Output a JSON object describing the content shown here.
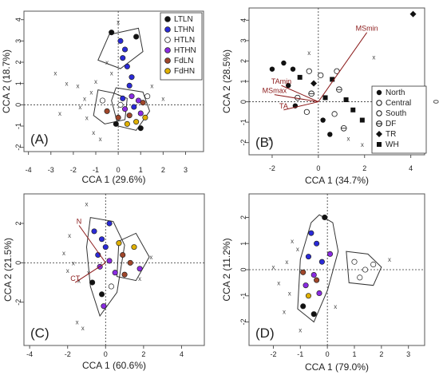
{
  "chart_data": [
    {
      "type": "scatter",
      "panel_label": "(A)",
      "xlabel": "CCA 1 (29.6%)",
      "ylabel": "CCA 2 (18.7%)",
      "xlim": [
        -4.2,
        3.8
      ],
      "ylim": [
        -2.2,
        4.4
      ],
      "xticks": [
        -4,
        -3,
        -2,
        -1,
        0,
        1,
        2,
        3
      ],
      "yticks": [
        -2,
        -1,
        0,
        1,
        2,
        3,
        4
      ],
      "legend": {
        "position": "top-right",
        "entries": [
          {
            "name": "LTLN",
            "color": "#111111"
          },
          {
            "name": "LTHN",
            "color": "#2a2ad8"
          },
          {
            "name": "HTLN",
            "color": "#ffffff"
          },
          {
            "name": "HTHN",
            "color": "#8a2be2"
          },
          {
            "name": "FdLN",
            "color": "#a0462a"
          },
          {
            "name": "FdHN",
            "color": "#e0b000"
          }
        ]
      },
      "hulls": [
        {
          "series": "LTHN",
          "points": [
            [
              -0.4,
              3.3
            ],
            [
              0.9,
              3.6
            ],
            [
              1.1,
              2.5
            ],
            [
              0.1,
              1.7
            ],
            [
              -0.9,
              2.1
            ]
          ]
        },
        {
          "series": "FdLN",
          "points": [
            [
              -0.9,
              0.7
            ],
            [
              -0.2,
              0.55
            ],
            [
              0.4,
              0.3
            ],
            [
              0.3,
              -0.7
            ],
            [
              -0.6,
              -0.9
            ],
            [
              -1.1,
              -0.5
            ]
          ]
        },
        {
          "series": "LTLN",
          "points": [
            [
              -0.1,
              0.8
            ],
            [
              1.1,
              0.6
            ],
            [
              1.4,
              -0.3
            ],
            [
              0.8,
              -1.2
            ],
            [
              0.0,
              -1.0
            ],
            [
              -0.3,
              0.2
            ]
          ]
        }
      ],
      "points": [
        {
          "series": "LTHN",
          "x": 0.1,
          "y": 3.0
        },
        {
          "series": "LTHN",
          "x": 0.3,
          "y": 2.6
        },
        {
          "series": "LTHN",
          "x": 0.2,
          "y": 2.2
        },
        {
          "series": "LTHN",
          "x": 0.4,
          "y": 1.8
        },
        {
          "series": "LTHN",
          "x": 0.6,
          "y": 1.3
        },
        {
          "series": "LTHN",
          "x": 0.5,
          "y": 0.9
        },
        {
          "series": "LTLN",
          "x": 0.8,
          "y": 3.2
        },
        {
          "series": "LTLN",
          "x": -0.3,
          "y": 3.4
        },
        {
          "series": "HTHN",
          "x": 0.6,
          "y": 0.4
        },
        {
          "series": "HTHN",
          "x": 0.9,
          "y": 0.2
        },
        {
          "series": "HTHN",
          "x": 0.3,
          "y": -0.2
        },
        {
          "series": "HTHN",
          "x": 1.0,
          "y": -0.4
        },
        {
          "series": "LTHN",
          "x": 0.2,
          "y": 0.3
        },
        {
          "series": "LTHN",
          "x": 0.7,
          "y": -0.1
        },
        {
          "series": "FdLN",
          "x": 0.5,
          "y": -0.5
        },
        {
          "series": "FdLN",
          "x": 1.1,
          "y": 0.1
        },
        {
          "series": "FdLN",
          "x": -0.5,
          "y": -0.3
        },
        {
          "series": "FdLN",
          "x": 0.0,
          "y": -0.6
        },
        {
          "series": "FdHN",
          "x": 0.8,
          "y": -0.8
        },
        {
          "series": "FdHN",
          "x": 0.4,
          "y": -0.9
        },
        {
          "series": "FdHN",
          "x": 1.2,
          "y": -0.6
        },
        {
          "series": "HTLN",
          "x": -0.7,
          "y": 0.2
        },
        {
          "series": "HTLN",
          "x": 1.3,
          "y": 0.4
        },
        {
          "series": "HTLN",
          "x": 0.1,
          "y": 0.0
        },
        {
          "series": "LTLN",
          "x": 1.0,
          "y": -1.1
        },
        {
          "series": "LTLN",
          "x": -0.1,
          "y": -0.9
        }
      ],
      "crosses": [
        [
          -2.3,
          1.0
        ],
        [
          -1.8,
          0.9
        ],
        [
          -1.2,
          0.6
        ],
        [
          -2.6,
          -0.4
        ],
        [
          -1.4,
          -0.6
        ],
        [
          -1.0,
          1.1
        ],
        [
          -0.8,
          -1.6
        ],
        [
          -1.1,
          -1.3
        ],
        [
          2.0,
          0.3
        ],
        [
          -1.5,
          0.3
        ],
        [
          -1.7,
          -0.1
        ],
        [
          -0.5,
          2.0
        ],
        [
          0.0,
          3.9
        ],
        [
          -2.8,
          1.5
        ],
        [
          1.5,
          0.9
        ],
        [
          -0.3,
          1.5
        ]
      ]
    },
    {
      "type": "scatter",
      "panel_label": "(B)",
      "xlabel": "CCA 1 (34.7%)",
      "ylabel": "CCA 2 (28.5%)",
      "xlim": [
        -3.0,
        4.6
      ],
      "ylim": [
        -2.6,
        4.6
      ],
      "xticks": [
        -2,
        0,
        2,
        4
      ],
      "yticks": [
        -2,
        -1,
        0,
        1,
        2,
        3,
        4
      ],
      "right_axis_label": "0",
      "legend": {
        "position": "bottom-right",
        "entries": [
          {
            "name": "North",
            "marker": "circle-filled"
          },
          {
            "name": "Central",
            "marker": "circle-open"
          },
          {
            "name": "South",
            "marker": "circle-open"
          },
          {
            "name": "DF",
            "marker": "circle-lined"
          },
          {
            "name": "TR",
            "marker": "diamond"
          },
          {
            "name": "WH",
            "marker": "square"
          }
        ]
      },
      "arrows": [
        {
          "label": "MSmin",
          "x": 2.1,
          "y": 3.4
        },
        {
          "label": "TAmin",
          "x": -1.6,
          "y": 0.8
        },
        {
          "label": "MSmax",
          "x": -1.9,
          "y": 0.35
        },
        {
          "label": "TA",
          "x": -1.5,
          "y": -0.4
        }
      ],
      "points": [
        {
          "x": -1.5,
          "y": 1.9,
          "marker": "circle-filled"
        },
        {
          "x": -1.1,
          "y": 1.6,
          "marker": "circle-filled"
        },
        {
          "x": -0.8,
          "y": 1.2,
          "marker": "square"
        },
        {
          "x": -0.4,
          "y": 1.5,
          "marker": "circle-open"
        },
        {
          "x": 0.1,
          "y": 1.3,
          "marker": "circle-open"
        },
        {
          "x": 0.6,
          "y": 1.1,
          "marker": "square"
        },
        {
          "x": 0.9,
          "y": 0.6,
          "marker": "circle-lined"
        },
        {
          "x": -1.3,
          "y": 0.8,
          "marker": "circle-filled"
        },
        {
          "x": -0.9,
          "y": 0.2,
          "marker": "circle-open"
        },
        {
          "x": -0.3,
          "y": 0.4,
          "marker": "circle-lined"
        },
        {
          "x": 0.3,
          "y": 0.2,
          "marker": "square"
        },
        {
          "x": 1.2,
          "y": 0.1,
          "marker": "square"
        },
        {
          "x": 1.5,
          "y": -0.4,
          "marker": "square"
        },
        {
          "x": 0.7,
          "y": -0.6,
          "marker": "circle-open"
        },
        {
          "x": 0.2,
          "y": -0.9,
          "marker": "circle-filled"
        },
        {
          "x": -0.5,
          "y": -0.5,
          "marker": "circle-open"
        },
        {
          "x": -1.0,
          "y": -0.2,
          "marker": "circle-filled"
        },
        {
          "x": 1.9,
          "y": -0.9,
          "marker": "square"
        },
        {
          "x": 1.1,
          "y": -1.3,
          "marker": "circle-lined"
        },
        {
          "x": 0.5,
          "y": -1.6,
          "marker": "circle-filled"
        },
        {
          "x": -0.2,
          "y": 0.9,
          "marker": "diamond"
        },
        {
          "x": 0.8,
          "y": 1.5,
          "marker": "circle-open"
        },
        {
          "x": -2.0,
          "y": 1.6,
          "marker": "circle-filled"
        },
        {
          "x": 4.1,
          "y": 4.3,
          "marker": "diamond"
        }
      ],
      "crosses": [
        [
          2.4,
          2.2
        ],
        [
          1.9,
          -2.1
        ],
        [
          2.8,
          -2.2
        ],
        [
          -2.1,
          -1.8
        ],
        [
          1.3,
          -1.8
        ],
        [
          -0.4,
          2.4
        ]
      ]
    },
    {
      "type": "scatter",
      "panel_label": "(C)",
      "xlabel": "CCA 1 (60.6%)",
      "ylabel": "CCA 2 (21.5%)",
      "xlim": [
        -4.3,
        5.2
      ],
      "ylim": [
        -4.2,
        3.5
      ],
      "xticks": [
        -4,
        -2,
        0,
        2,
        4
      ],
      "yticks": [
        -2,
        0,
        2
      ],
      "arrows": [
        {
          "label": "N",
          "x": -1.4,
          "y": 1.9
        },
        {
          "label": "CT",
          "x": -1.6,
          "y": -1.0
        }
      ],
      "hulls": [
        {
          "series": "LTLN",
          "points": [
            [
              -0.8,
              2.3
            ],
            [
              0.4,
              2.1
            ],
            [
              1.0,
              0.9
            ],
            [
              0.6,
              -1.5
            ],
            [
              -0.3,
              -2.7
            ],
            [
              -0.8,
              -1.2
            ],
            [
              -1.0,
              0.8
            ]
          ]
        },
        {
          "series": "FdLN",
          "points": [
            [
              0.7,
              1.1
            ],
            [
              1.6,
              1.5
            ],
            [
              2.3,
              0.3
            ],
            [
              1.6,
              -0.9
            ],
            [
              0.6,
              -0.7
            ]
          ]
        }
      ],
      "points": [
        {
          "series": "LTHN",
          "x": -0.6,
          "y": 1.6
        },
        {
          "series": "LTHN",
          "x": -0.2,
          "y": 1.2
        },
        {
          "series": "LTHN",
          "x": 0.0,
          "y": 0.8
        },
        {
          "series": "LTHN",
          "x": -0.4,
          "y": 0.4
        },
        {
          "series": "HTHN",
          "x": 0.2,
          "y": 0.1
        },
        {
          "series": "HTHN",
          "x": -0.3,
          "y": -0.2
        },
        {
          "series": "HTHN",
          "x": 0.5,
          "y": -0.5
        },
        {
          "series": "FdLN",
          "x": 0.9,
          "y": 0.4
        },
        {
          "series": "FdLN",
          "x": 1.3,
          "y": 0.0
        },
        {
          "series": "FdLN",
          "x": 1.0,
          "y": -0.6
        },
        {
          "series": "FdHN",
          "x": 1.5,
          "y": 0.8
        },
        {
          "series": "FdHN",
          "x": 0.7,
          "y": 1.0
        },
        {
          "series": "LTLN",
          "x": -0.7,
          "y": -1.0
        },
        {
          "series": "LTLN",
          "x": -0.2,
          "y": -1.6
        },
        {
          "series": "HTLN",
          "x": 0.3,
          "y": -1.2
        },
        {
          "series": "HTHN",
          "x": -0.1,
          "y": -2.2
        },
        {
          "series": "LTHN",
          "x": 0.2,
          "y": 2.0
        },
        {
          "series": "HTHN",
          "x": 1.8,
          "y": -0.3
        }
      ],
      "crosses": [
        [
          -1.9,
          1.4
        ],
        [
          -2.2,
          0.5
        ],
        [
          -1.7,
          0.0
        ],
        [
          -2.0,
          -0.4
        ],
        [
          -1.4,
          -0.9
        ],
        [
          -1.0,
          3.0
        ],
        [
          2.4,
          0.3
        ],
        [
          1.8,
          -0.8
        ],
        [
          -1.5,
          -3.0
        ],
        [
          -1.2,
          -3.3
        ],
        [
          -0.9,
          -0.5
        ]
      ]
    },
    {
      "type": "scatter",
      "panel_label": "(D)",
      "xlabel": "CCA 1 (79.0%)",
      "ylabel": "CCA 2 (11.2%)",
      "xlim": [
        -2.9,
        3.6
      ],
      "ylim": [
        -2.9,
        2.9
      ],
      "xticks": [
        -2,
        -1,
        0,
        1,
        2,
        3
      ],
      "yticks": [
        -2,
        -1,
        0,
        1,
        2
      ],
      "hulls": [
        {
          "series": "LTLN",
          "points": [
            [
              -0.3,
              2.1
            ],
            [
              0.2,
              1.8
            ],
            [
              0.4,
              0.7
            ],
            [
              0.0,
              -0.8
            ],
            [
              -0.5,
              -2.0
            ],
            [
              -1.1,
              -1.5
            ],
            [
              -1.0,
              0.4
            ],
            [
              -0.6,
              1.8
            ]
          ]
        },
        {
          "series": "HTLN",
          "points": [
            [
              0.7,
              0.7
            ],
            [
              1.5,
              0.6
            ],
            [
              2.0,
              0.1
            ],
            [
              1.7,
              -0.6
            ],
            [
              0.8,
              -0.5
            ]
          ]
        }
      ],
      "points": [
        {
          "series": "LTHN",
          "x": -0.6,
          "y": 1.4
        },
        {
          "series": "LTHN",
          "x": -0.4,
          "y": 1.0
        },
        {
          "series": "LTHN",
          "x": -0.7,
          "y": 0.5
        },
        {
          "series": "LTHN",
          "x": -0.2,
          "y": 0.3
        },
        {
          "series": "HTHN",
          "x": -0.5,
          "y": -0.2
        },
        {
          "series": "HTHN",
          "x": -0.8,
          "y": -0.6
        },
        {
          "series": "HTHN",
          "x": -0.3,
          "y": -0.9
        },
        {
          "series": "FdLN",
          "x": -0.9,
          "y": -0.1
        },
        {
          "series": "FdLN",
          "x": -0.4,
          "y": -0.4
        },
        {
          "series": "FdHN",
          "x": -0.7,
          "y": -1.0
        },
        {
          "series": "LTLN",
          "x": -0.9,
          "y": -1.4
        },
        {
          "series": "LTLN",
          "x": -0.5,
          "y": -1.7
        },
        {
          "series": "HTLN",
          "x": 1.0,
          "y": 0.3
        },
        {
          "series": "HTLN",
          "x": 1.4,
          "y": 0.0
        },
        {
          "series": "HTLN",
          "x": 1.2,
          "y": -0.3
        },
        {
          "series": "HTLN",
          "x": 1.7,
          "y": 0.2
        },
        {
          "series": "LTLN",
          "x": -0.1,
          "y": 2.0
        },
        {
          "series": "HTHN",
          "x": 0.1,
          "y": 0.6
        }
      ],
      "crosses": [
        [
          -1.5,
          0.3
        ],
        [
          -1.8,
          -0.5
        ],
        [
          -1.4,
          -0.9
        ],
        [
          -2.0,
          0.1
        ],
        [
          -1.3,
          1.1
        ],
        [
          -1.0,
          -2.3
        ],
        [
          0.3,
          -1.4
        ],
        [
          -1.6,
          -1.6
        ],
        [
          2.3,
          0.4
        ],
        [
          -1.1,
          0.8
        ]
      ]
    }
  ]
}
